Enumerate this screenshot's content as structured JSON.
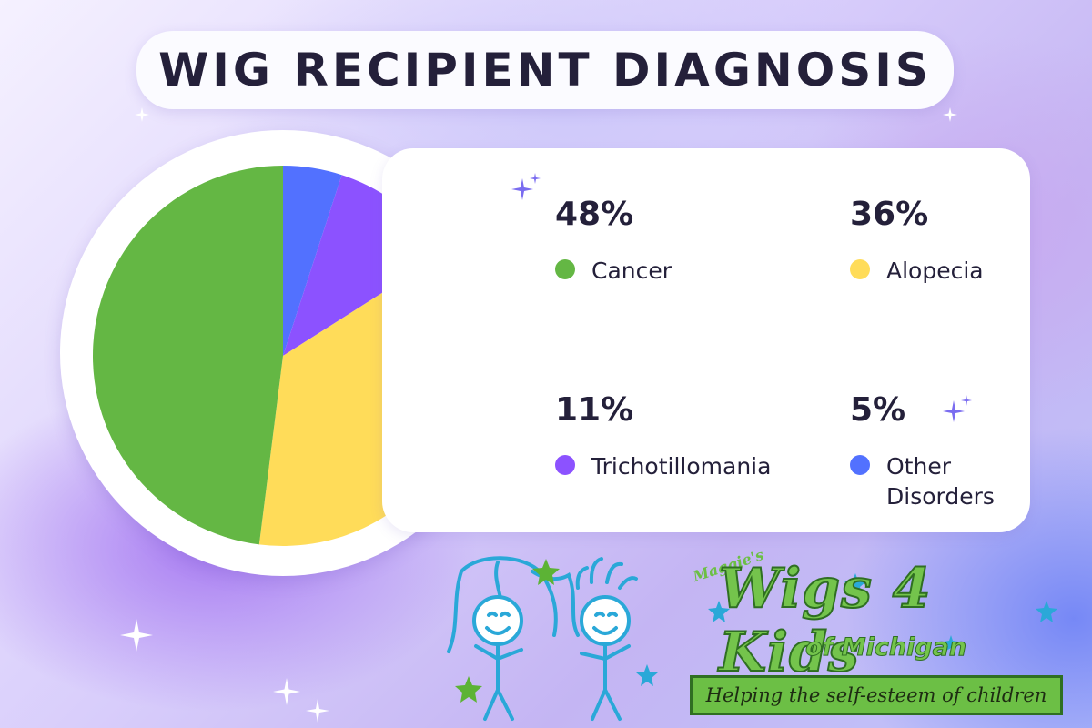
{
  "chart_data": {
    "type": "pie",
    "title": "WIG RECIPIENT DIAGNOSIS",
    "slices": [
      {
        "label": "Cancer",
        "value": 48,
        "display": "48%",
        "color": "#64b744"
      },
      {
        "label": "Alopecia",
        "value": 36,
        "display": "36%",
        "color": "#ffdc59"
      },
      {
        "label": "Trichotillomania",
        "value": 11,
        "display": "11%",
        "color": "#8c52ff"
      },
      {
        "label": "Other Disorders",
        "value": 5,
        "display": "5%",
        "color": "#5271ff"
      }
    ],
    "legend_placement": "right"
  },
  "logo": {
    "brand_small": "Maggie's",
    "brand_main": "Wigs 4 Kids",
    "brand_sub": "of Michigan",
    "tagline": "Helping the self-esteem of children"
  }
}
